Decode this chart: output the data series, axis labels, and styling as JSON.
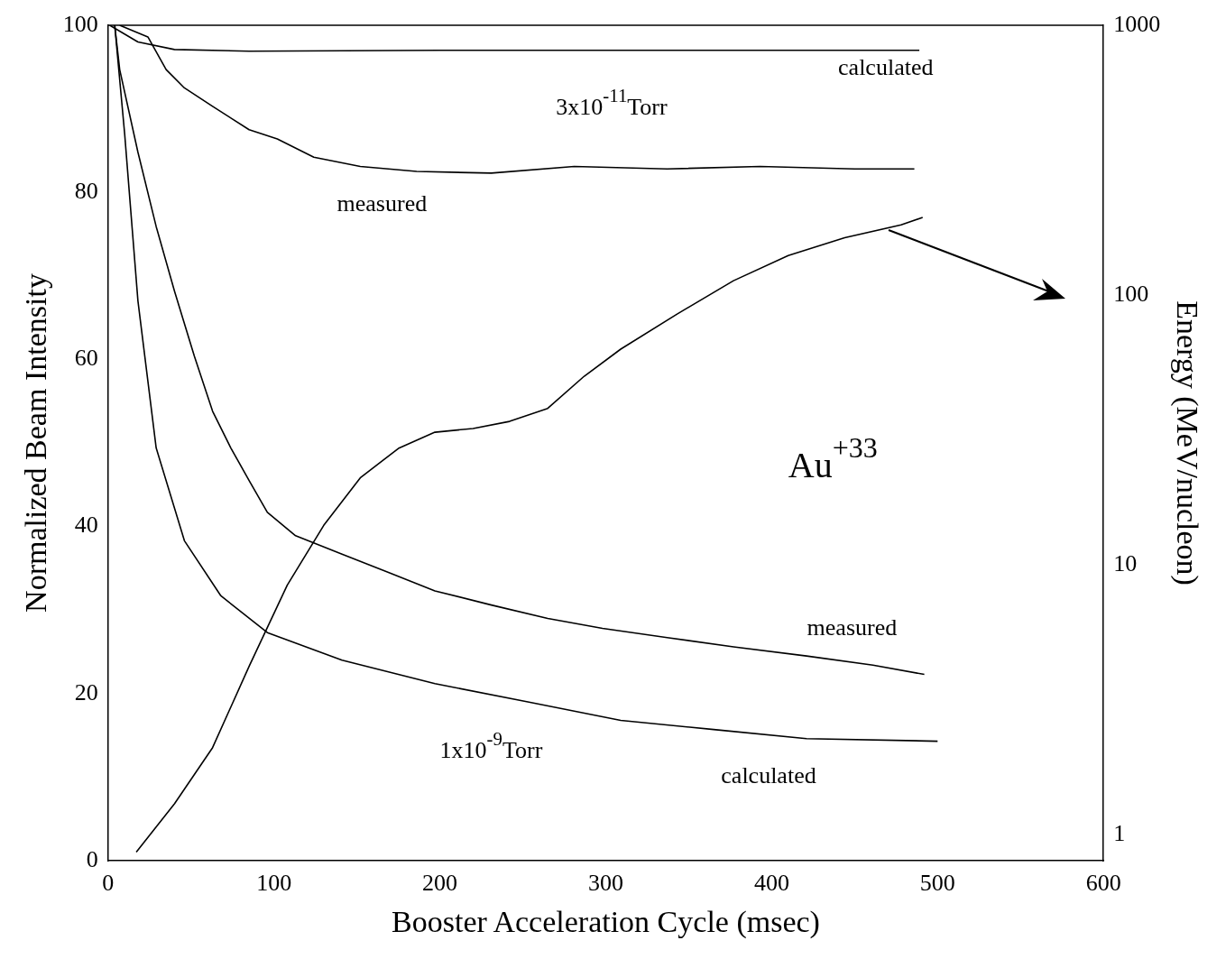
{
  "chart_data": {
    "type": "line",
    "xlabel": "Booster Acceleration Cycle (msec)",
    "ylabel": "Normalized Beam Intensity",
    "y2label": "Energy (MeV/nucleon)",
    "xlim": [
      0,
      600
    ],
    "xticks": [
      0,
      100,
      200,
      300,
      400,
      500,
      600
    ],
    "ylim": [
      0,
      100
    ],
    "yticks": [
      0,
      20,
      40,
      60,
      80,
      100
    ],
    "y2lim": [
      0.8,
      1000
    ],
    "y2ticks": [
      1,
      10,
      100,
      1000
    ],
    "log": "y2",
    "grid": false,
    "legend": false,
    "marker": "none",
    "line_style": "solid",
    "series": [
      {
        "name": "calculated",
        "color": "#000000",
        "x": [
          1,
          18,
          40,
          85,
          200,
          300,
          400,
          489
        ],
        "values": [
          100,
          98,
          97.1,
          96.9,
          97,
          97,
          97,
          97
        ]
      },
      {
        "name": "measured",
        "color": "#000000",
        "x": [
          7,
          24,
          35,
          46,
          63,
          85,
          102,
          124,
          152,
          186,
          231,
          281,
          337,
          393,
          450,
          486
        ],
        "values": [
          100,
          98.6,
          94.7,
          92.5,
          90.3,
          87.5,
          86.4,
          84.2,
          83.1,
          82.5,
          82.3,
          83.1,
          82.8,
          83.1,
          82.8,
          82.8
        ]
      },
      {
        "name": "measured",
        "color": "#000000",
        "x": [
          4,
          7,
          18,
          29,
          40,
          52,
          63,
          74,
          85,
          96,
          113,
          141,
          169,
          197,
          231,
          265,
          298,
          337,
          377,
          421,
          461,
          492
        ],
        "values": [
          100,
          94.7,
          84.8,
          75.9,
          68.2,
          60.4,
          53.8,
          49.4,
          45.5,
          41.7,
          38.9,
          36.7,
          34.5,
          32.3,
          30.6,
          29,
          27.8,
          26.7,
          25.6,
          24.5,
          23.4,
          22.3
        ]
      },
      {
        "name": "calculated",
        "color": "#000000",
        "x": [
          4,
          10,
          18,
          29,
          46,
          68,
          96,
          141,
          197,
          253,
          309,
          365,
          421,
          500
        ],
        "values": [
          100,
          87,
          67,
          49.4,
          38.3,
          31.7,
          27.3,
          24,
          21.2,
          19,
          16.8,
          15.7,
          14.6,
          14.3
        ]
      },
      {
        "color": "#000000",
        "axis": "y2",
        "x": [
          17,
          40,
          63,
          85,
          108,
          130,
          152,
          175,
          197,
          220,
          242,
          265,
          287,
          309,
          343,
          377,
          410,
          444,
          478,
          491
        ],
        "values": [
          0.86,
          1.3,
          2.1,
          4.2,
          8.4,
          14,
          21,
          27,
          31,
          32,
          34,
          38,
          50,
          63,
          85,
          113,
          140,
          163,
          182,
          194
        ]
      }
    ],
    "annotations": [
      "3x10$^{-11}$Torr",
      "1x10$^{-9}$Torr",
      "Au$^{+33}$"
    ]
  }
}
